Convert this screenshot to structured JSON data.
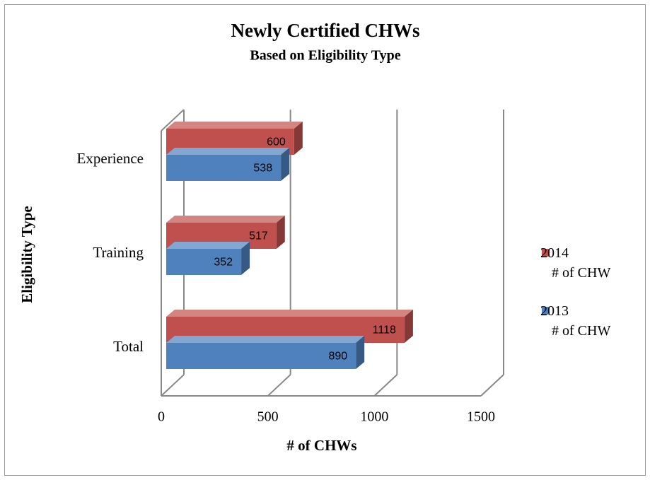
{
  "chart_data": {
    "type": "bar3d_horizontal",
    "title": "Newly Certified CHWs",
    "subtitle": "Based on Eligibility Type",
    "xlabel": "# of CHWs",
    "ylabel": "Eligibility Type",
    "categories": [
      "Experience",
      "Training",
      "Total"
    ],
    "series": [
      {
        "name": "2014\n# of CHW",
        "color": "#c0504d",
        "values": [
          600,
          517,
          1118
        ]
      },
      {
        "name": "2013\n# of CHW",
        "color": "#4f81bd",
        "values": [
          538,
          352,
          890
        ]
      }
    ],
    "xlim": [
      0,
      1500
    ],
    "xticks": [
      0,
      500,
      1000,
      1500
    ],
    "grid": true,
    "legend": "right"
  }
}
